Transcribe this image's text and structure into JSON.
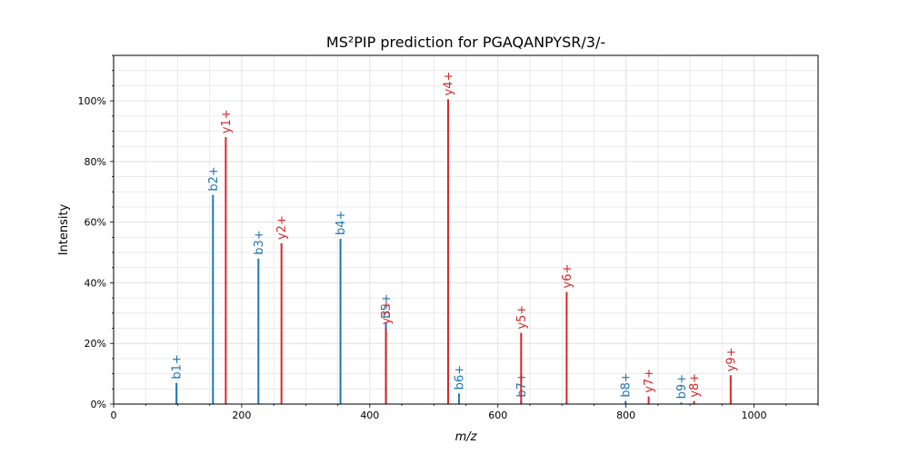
{
  "chart_data": {
    "type": "bar",
    "title": "MS²PIP prediction for PGAQANPYSR/3/-",
    "xlabel": "m/z",
    "ylabel": "Intensity",
    "xlim": [
      0,
      1100
    ],
    "ylim": [
      0,
      1.15
    ],
    "x_ticks": [
      0,
      200,
      400,
      600,
      800,
      1000
    ],
    "y_ticks": [
      0,
      0.2,
      0.4,
      0.6,
      0.8,
      1.0
    ],
    "y_tick_labels": [
      "0%",
      "20%",
      "40%",
      "60%",
      "80%",
      "100%"
    ],
    "grid": true,
    "colors": {
      "b": "#1f77b4",
      "y": "#d62728"
    },
    "series": [
      {
        "ion_type": "b",
        "peaks": [
          {
            "label": "b1+",
            "mz": 98.1,
            "intensity": 0.07
          },
          {
            "label": "b2+",
            "mz": 155.1,
            "intensity": 0.69
          },
          {
            "label": "b3+",
            "mz": 226.1,
            "intensity": 0.48
          },
          {
            "label": "b4+",
            "mz": 354.2,
            "intensity": 0.545
          },
          {
            "label": "b5+",
            "mz": 425.2,
            "intensity": 0.27
          },
          {
            "label": "b6+",
            "mz": 539.3,
            "intensity": 0.035
          },
          {
            "label": "b7+",
            "mz": 636.3,
            "intensity": 0.01
          },
          {
            "label": "b8+",
            "mz": 799.4,
            "intensity": 0.01
          },
          {
            "label": "b9+",
            "mz": 886.4,
            "intensity": 0.005
          }
        ]
      },
      {
        "ion_type": "y",
        "peaks": [
          {
            "label": "y1+",
            "mz": 175.1,
            "intensity": 0.88
          },
          {
            "label": "y2+",
            "mz": 262.1,
            "intensity": 0.53
          },
          {
            "label": "y3+",
            "mz": 425.2,
            "intensity": 0.25
          },
          {
            "label": "y4+",
            "mz": 522.3,
            "intensity": 1.005
          },
          {
            "label": "y5+",
            "mz": 636.3,
            "intensity": 0.235
          },
          {
            "label": "y6+",
            "mz": 707.4,
            "intensity": 0.37
          },
          {
            "label": "y7+",
            "mz": 835.4,
            "intensity": 0.025
          },
          {
            "label": "y8+",
            "mz": 906.4,
            "intensity": 0.01
          },
          {
            "label": "y9+",
            "mz": 963.5,
            "intensity": 0.095
          }
        ]
      }
    ]
  }
}
